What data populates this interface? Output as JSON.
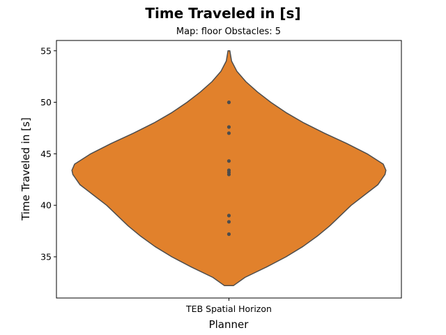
{
  "chart_data": {
    "type": "violin",
    "title": "Time Traveled in [s]",
    "subtitle": "Map: floor Obstacles: 5",
    "xlabel": "Planner",
    "ylabel": "Time Traveled in [s]",
    "categories": [
      "TEB Spatial Horizon"
    ],
    "ylim": [
      31.0,
      56.0
    ],
    "yticks": [
      35,
      40,
      45,
      50,
      55
    ],
    "fill_color": "#e1812c",
    "edge_color": "#4d4d4d",
    "point_color": "#4d4d4d",
    "points": [
      50.0,
      47.6,
      47.0,
      44.3,
      43.4,
      43.2,
      43.0,
      39.0,
      38.4,
      37.2
    ],
    "violin_range": [
      32.2,
      55.0
    ],
    "density_profile": [
      {
        "y": 32.2,
        "w": 0.05
      },
      {
        "y": 33.0,
        "w": 0.18
      },
      {
        "y": 34.0,
        "w": 0.42
      },
      {
        "y": 35.0,
        "w": 0.64
      },
      {
        "y": 36.0,
        "w": 0.83
      },
      {
        "y": 37.0,
        "w": 0.99
      },
      {
        "y": 38.0,
        "w": 1.13
      },
      {
        "y": 39.0,
        "w": 1.25
      },
      {
        "y": 40.0,
        "w": 1.37
      },
      {
        "y": 41.0,
        "w": 1.52
      },
      {
        "y": 42.0,
        "w": 1.67
      },
      {
        "y": 43.0,
        "w": 1.75
      },
      {
        "y": 43.4,
        "w": 1.76
      },
      {
        "y": 44.0,
        "w": 1.73
      },
      {
        "y": 45.0,
        "w": 1.55
      },
      {
        "y": 46.0,
        "w": 1.32
      },
      {
        "y": 47.0,
        "w": 1.07
      },
      {
        "y": 48.0,
        "w": 0.84
      },
      {
        "y": 49.0,
        "w": 0.64
      },
      {
        "y": 50.0,
        "w": 0.47
      },
      {
        "y": 51.0,
        "w": 0.32
      },
      {
        "y": 52.0,
        "w": 0.19
      },
      {
        "y": 53.0,
        "w": 0.09
      },
      {
        "y": 54.0,
        "w": 0.03
      },
      {
        "y": 55.0,
        "w": 0.01
      }
    ],
    "grid": false,
    "legend": "none"
  }
}
